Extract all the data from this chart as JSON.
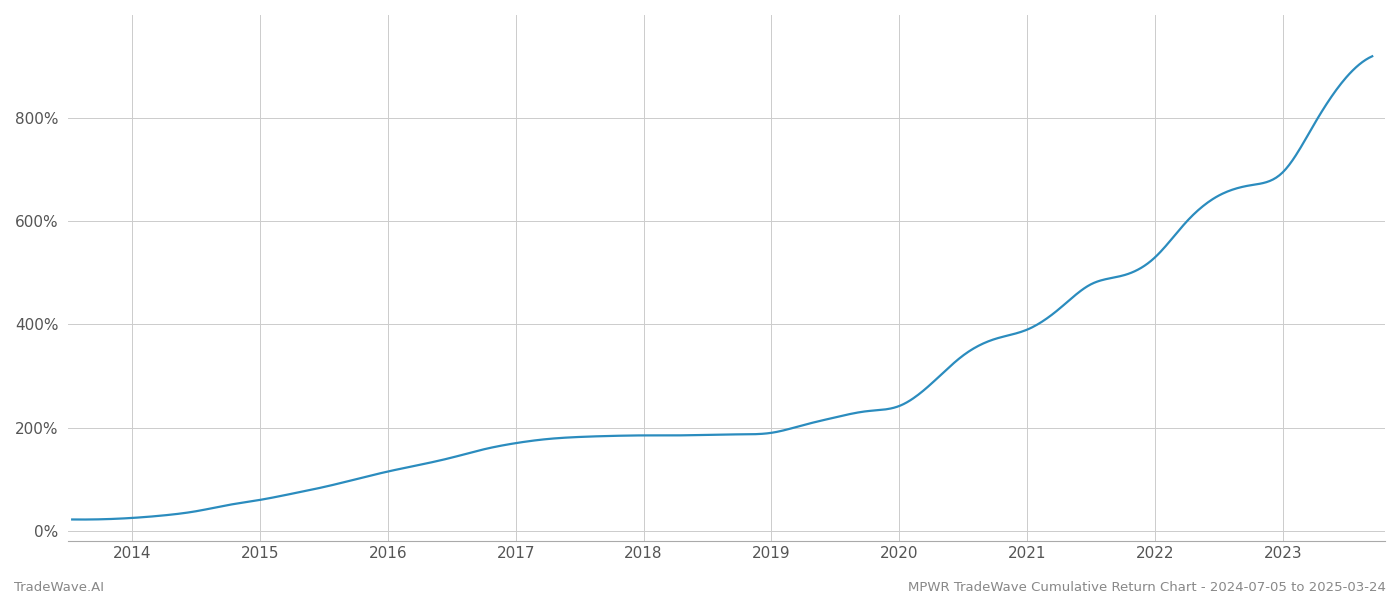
{
  "title": "MPWR TradeWave Cumulative Return Chart - 2024-07-05 to 2025-03-24",
  "watermark_left": "TradeWave.AI",
  "line_color": "#2b8cbe",
  "background_color": "#ffffff",
  "grid_color": "#cccccc",
  "x_years": [
    2014,
    2015,
    2016,
    2017,
    2018,
    2019,
    2020,
    2021,
    2022,
    2023
  ],
  "y_ticks": [
    0,
    200,
    400,
    600,
    800
  ],
  "x_data": [
    2013.53,
    2014.0,
    2014.25,
    2014.5,
    2014.75,
    2015.0,
    2015.25,
    2015.5,
    2015.75,
    2016.0,
    2016.25,
    2016.5,
    2016.75,
    2017.0,
    2017.25,
    2017.5,
    2017.75,
    2018.0,
    2018.25,
    2018.5,
    2018.75,
    2019.0,
    2019.25,
    2019.5,
    2019.75,
    2020.0,
    2020.25,
    2020.5,
    2020.75,
    2021.0,
    2021.25,
    2021.5,
    2021.75,
    2022.0,
    2022.25,
    2022.5,
    2022.75,
    2023.0,
    2023.25,
    2023.5,
    2023.7
  ],
  "y_data": [
    22,
    25,
    30,
    38,
    50,
    60,
    72,
    85,
    100,
    115,
    128,
    142,
    158,
    170,
    178,
    182,
    184,
    185,
    185,
    186,
    187,
    190,
    205,
    220,
    232,
    242,
    285,
    340,
    372,
    390,
    430,
    478,
    495,
    530,
    600,
    650,
    670,
    695,
    790,
    880,
    920
  ],
  "xlim": [
    2013.5,
    2023.8
  ],
  "ylim": [
    -20,
    1000
  ],
  "line_width": 1.6,
  "tick_fontsize": 11,
  "footer_fontsize": 9.5
}
